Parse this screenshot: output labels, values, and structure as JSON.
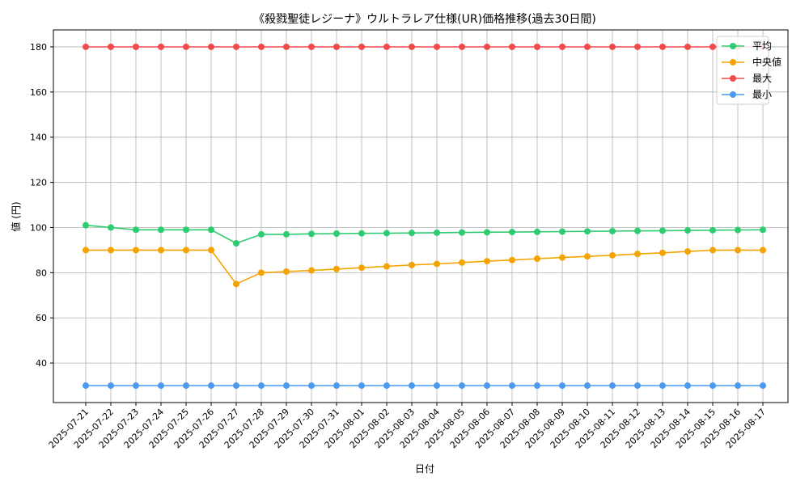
{
  "chart_data": {
    "type": "line",
    "title": "《殺戮聖徒レジーナ》ウルトラレア仕様(UR)価格推移(過去30日間)",
    "xlabel": "日付",
    "ylabel": "値 (円)",
    "x": [
      "2025-07-21",
      "2025-07-22",
      "2025-07-23",
      "2025-07-24",
      "2025-07-25",
      "2025-07-26",
      "2025-07-27",
      "2025-07-28",
      "2025-07-29",
      "2025-07-30",
      "2025-07-31",
      "2025-08-01",
      "2025-08-02",
      "2025-08-03",
      "2025-08-04",
      "2025-08-05",
      "2025-08-06",
      "2025-08-07",
      "2025-08-08",
      "2025-08-09",
      "2025-08-10",
      "2025-08-11",
      "2025-08-12",
      "2025-08-13",
      "2025-08-14",
      "2025-08-15",
      "2025-08-16",
      "2025-08-17"
    ],
    "yticks": [
      40,
      60,
      80,
      100,
      120,
      140,
      160,
      180
    ],
    "ylim": [
      22.5,
      187.5
    ],
    "grid": true,
    "legend_position": "top-right",
    "series": [
      {
        "name": "平均",
        "color": "#2ecc71",
        "values": [
          101,
          100,
          99,
          99,
          99,
          99,
          93,
          97,
          97,
          97.2,
          97.3,
          97.4,
          97.5,
          97.6,
          97.7,
          97.8,
          97.9,
          98,
          98.1,
          98.2,
          98.3,
          98.4,
          98.5,
          98.6,
          98.7,
          98.8,
          98.9,
          99
        ]
      },
      {
        "name": "中央値",
        "color": "#f5a300",
        "values": [
          90,
          90,
          90,
          90,
          90,
          90,
          75,
          80,
          80.5,
          81,
          81.6,
          82.2,
          82.8,
          83.4,
          83.9,
          84.5,
          85.1,
          85.6,
          86.2,
          86.7,
          87.2,
          87.7,
          88.3,
          88.8,
          89.4,
          90,
          90,
          90
        ]
      },
      {
        "name": "最大",
        "color": "#f04a4a",
        "values": [
          180,
          180,
          180,
          180,
          180,
          180,
          180,
          180,
          180,
          180,
          180,
          180,
          180,
          180,
          180,
          180,
          180,
          180,
          180,
          180,
          180,
          180,
          180,
          180,
          180,
          180,
          180,
          180
        ]
      },
      {
        "name": "最小",
        "color": "#4a9af0",
        "values": [
          30,
          30,
          30,
          30,
          30,
          30,
          30,
          30,
          30,
          30,
          30,
          30,
          30,
          30,
          30,
          30,
          30,
          30,
          30,
          30,
          30,
          30,
          30,
          30,
          30,
          30,
          30,
          30
        ]
      }
    ]
  }
}
